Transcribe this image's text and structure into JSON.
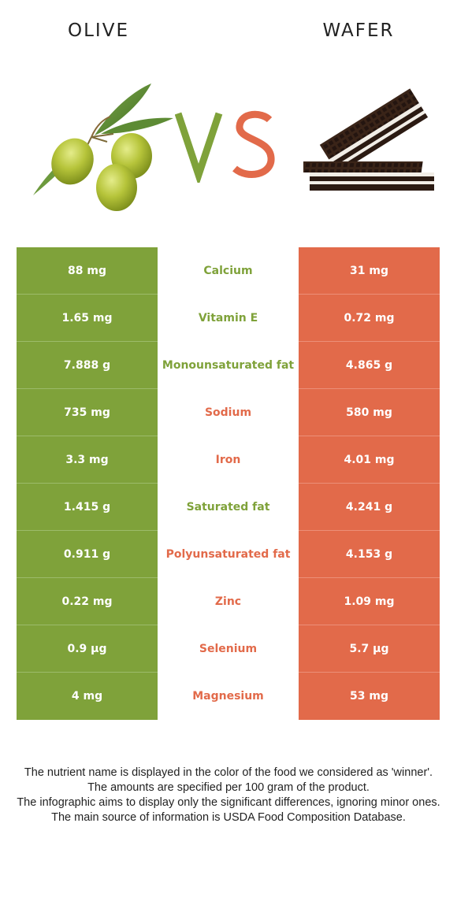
{
  "header": {
    "left_title": "OLIVE",
    "right_title": "WAFER",
    "vs_text": "VS"
  },
  "colors": {
    "olive": "#7fa23a",
    "wafer": "#e26a4a"
  },
  "rows": [
    {
      "left": "88 mg",
      "nutrient": "Calcium",
      "right": "31 mg",
      "winner": "olive"
    },
    {
      "left": "1.65 mg",
      "nutrient": "Vitamin E",
      "right": "0.72 mg",
      "winner": "olive"
    },
    {
      "left": "7.888 g",
      "nutrient": "Monounsaturated fat",
      "right": "4.865 g",
      "winner": "olive"
    },
    {
      "left": "735 mg",
      "nutrient": "Sodium",
      "right": "580 mg",
      "winner": "wafer"
    },
    {
      "left": "3.3 mg",
      "nutrient": "Iron",
      "right": "4.01 mg",
      "winner": "wafer"
    },
    {
      "left": "1.415 g",
      "nutrient": "Saturated fat",
      "right": "4.241 g",
      "winner": "olive"
    },
    {
      "left": "0.911 g",
      "nutrient": "Polyunsaturated fat",
      "right": "4.153 g",
      "winner": "wafer"
    },
    {
      "left": "0.22 mg",
      "nutrient": "Zinc",
      "right": "1.09 mg",
      "winner": "wafer"
    },
    {
      "left": "0.9 µg",
      "nutrient": "Selenium",
      "right": "5.7 µg",
      "winner": "wafer"
    },
    {
      "left": "4 mg",
      "nutrient": "Magnesium",
      "right": "53 mg",
      "winner": "wafer"
    }
  ],
  "footer": {
    "line1": "The nutrient name is displayed in the color of the food we considered as 'winner'.",
    "line2": "The amounts are specified per 100 gram of the product.",
    "line3": "The infographic aims to display only the significant differences, ignoring minor ones.",
    "line4": "The main source of information is USDA Food Composition Database."
  }
}
